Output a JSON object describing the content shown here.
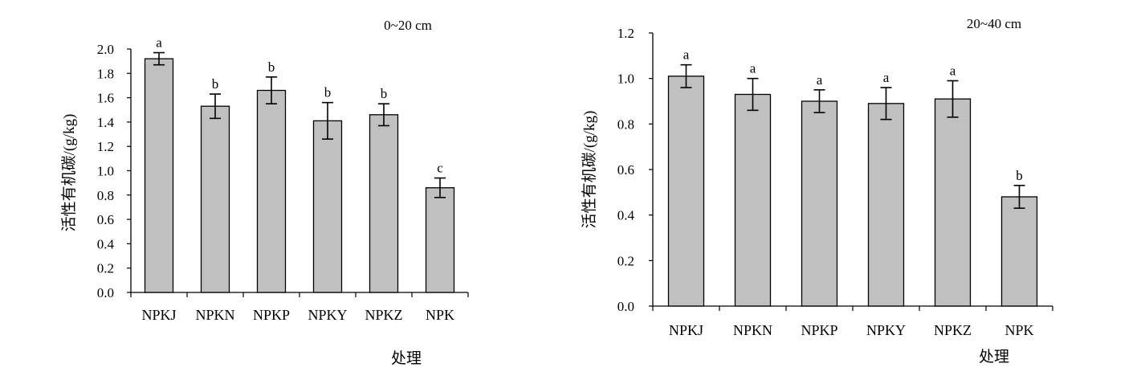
{
  "chart_data": [
    {
      "type": "bar",
      "title": "0~20 cm",
      "xlabel": "处理",
      "ylabel": "活性有机碳/(g/kg)",
      "ylim": [
        0,
        2.0
      ],
      "ytick_step": 0.2,
      "ytick_labels": [
        "0.0",
        "0.2",
        "0.4",
        "0.6",
        "0.8",
        "1.0",
        "1.2",
        "1.4",
        "1.6",
        "1.8",
        "2.0"
      ],
      "categories": [
        "NPKJ",
        "NPKN",
        "NPKP",
        "NPKY",
        "NPKZ",
        "NPK"
      ],
      "values": [
        1.92,
        1.53,
        1.66,
        1.41,
        1.46,
        0.86
      ],
      "errors": [
        0.05,
        0.1,
        0.11,
        0.15,
        0.09,
        0.08
      ],
      "significance": [
        "a",
        "b",
        "b",
        "b",
        "b",
        "c"
      ],
      "bar_color": "#c0c0c0",
      "grid": false,
      "legend": "none"
    },
    {
      "type": "bar",
      "title": "20~40 cm",
      "xlabel": "处理",
      "ylabel": "活性有机碳/(g/kg)",
      "ylim": [
        0,
        1.2
      ],
      "ytick_step": 0.2,
      "ytick_labels": [
        "0.0",
        "0.2",
        "0.4",
        "0.6",
        "0.8",
        "1.0",
        "1.2"
      ],
      "categories": [
        "NPKJ",
        "NPKN",
        "NPKP",
        "NPKY",
        "NPKZ",
        "NPK"
      ],
      "values": [
        1.01,
        0.93,
        0.9,
        0.89,
        0.91,
        0.48
      ],
      "errors": [
        0.05,
        0.07,
        0.05,
        0.07,
        0.08,
        0.05
      ],
      "significance": [
        "a",
        "a",
        "a",
        "a",
        "a",
        "b"
      ],
      "bar_color": "#c0c0c0",
      "grid": false,
      "legend": "none"
    }
  ]
}
